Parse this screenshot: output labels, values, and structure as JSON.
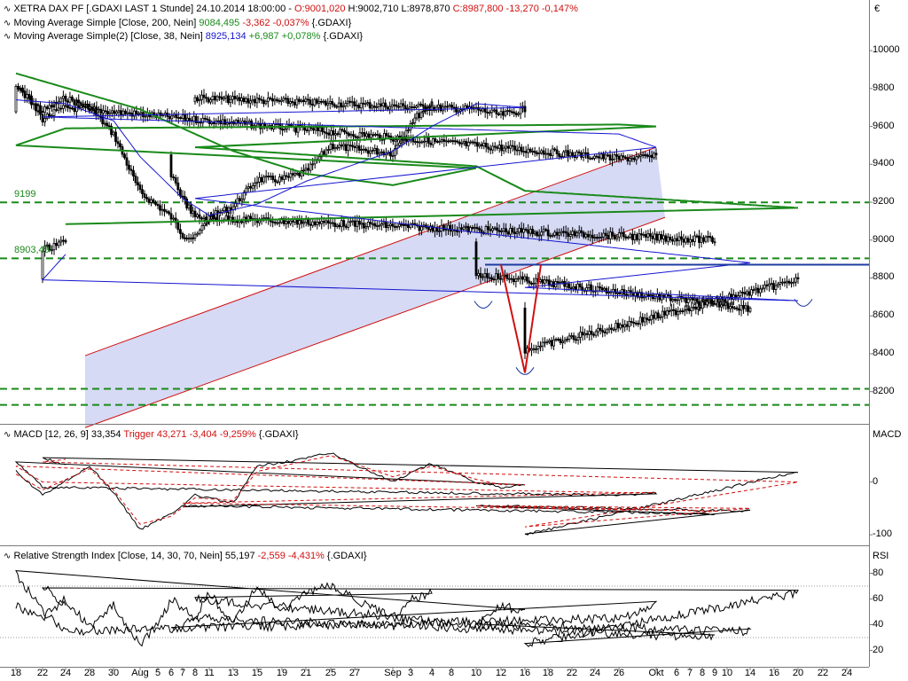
{
  "colors": {
    "price_bar": "#000000",
    "ma200": "#1a8a1a",
    "ma38": "#1515d0",
    "channel": "#d01010",
    "channel_fill": "#c8cdf0",
    "level_line": "#1a8a1a",
    "neckline": "#1e3ca0",
    "macd_line": "#000000",
    "trigger_line": "#d01010",
    "rsi_line": "#000000",
    "negative_text": "#d01010",
    "positive_text": "#1a8a1a",
    "ma200_text": "#1a8a1a",
    "ma38_text": "#1515d0"
  },
  "header": {
    "title_prefix": "XETRA DAX PF [.GDAXI LAST 1 Stunde] 24.10.2014 18:00:00 - ",
    "open": "O:9001,020",
    "hlc": " H:9002,710 L:8978,870 ",
    "close_change": "C:8987,800 -13,270 -0,147%",
    "currency_symbol": "€"
  },
  "legends": {
    "ma200_label": "Moving Average Simple [Close, 200, Nein]",
    "ma200_value": "9084,495",
    "ma200_change": "-3,362 -0,037%",
    "ma200_suffix": "{.GDAXI}",
    "ma38_label": "Moving Average Simple(2) [Close, 38, Nein]",
    "ma38_value": "8925,134",
    "ma38_change": "+6,987 +0,078%",
    "ma38_suffix": "{.GDAXI}",
    "macd_label": "MACD [12, 26, 9] 33,354 ",
    "macd_trigger": "Trigger 43,271 -3,404 -9,259%",
    "macd_suffix": " {.GDAXI}",
    "macd_title": "MACD",
    "rsi_label": "Relative Strength Index [Close, 14, 30, 70, Nein] 55,197 ",
    "rsi_change": "-2,559 -4,431%",
    "rsi_suffix": " {.GDAXI}",
    "rsi_title": "RSI"
  },
  "chart_data": [
    {
      "type": "candlestick",
      "name": "XETRA DAX PF",
      "timeframe": "1 Stunde",
      "y_ticks": [
        8200,
        8400,
        8600,
        8800,
        9000,
        9200,
        9400,
        9600,
        9800,
        10000
      ],
      "y_range": [
        8030,
        10080
      ],
      "level_labels": [
        "9199",
        "8903,49"
      ],
      "horizontal_levels": [
        9199,
        8903.49,
        8215,
        8130
      ],
      "neckline": 8870,
      "x_labels": [
        "18",
        "22",
        "24",
        "28",
        "30",
        "Aug",
        "5",
        "6",
        "7",
        "8",
        "11",
        "13",
        "15",
        "19",
        "21",
        "25",
        "27",
        "Sep",
        "3",
        "4",
        "8",
        "10",
        "12",
        "16",
        "18",
        "22",
        "24",
        "26",
        "Okt",
        "6",
        "7",
        "8",
        "9",
        "10",
        "14",
        "16",
        "20",
        "22",
        "24"
      ],
      "close_path": [
        [
          "18",
          9810
        ],
        [
          "22",
          9680
        ],
        [
          "24",
          9750
        ],
        [
          "28",
          9700
        ],
        [
          "30",
          9560
        ],
        [
          "Aug",
          9250
        ],
        [
          "5",
          9180
        ],
        [
          "6",
          9120
        ],
        [
          "7",
          9030
        ],
        [
          "8",
          9010
        ],
        [
          "11",
          9120
        ],
        [
          "13",
          9180
        ],
        [
          "15",
          9320
        ],
        [
          "19",
          9320
        ],
        [
          "21",
          9360
        ],
        [
          "25",
          9500
        ],
        [
          "27",
          9480
        ],
        [
          "Sep",
          9460
        ],
        [
          "3",
          9620
        ],
        [
          "4",
          9730
        ],
        [
          "8",
          9750
        ],
        [
          "10",
          9690
        ],
        [
          "12",
          9660
        ],
        [
          "16",
          9690
        ],
        [
          "18",
          9830
        ],
        [
          "22",
          9640
        ],
        [
          "24",
          9700
        ],
        [
          "26",
          9430
        ],
        [
          "Okt",
          9440
        ],
        [
          "6",
          9350
        ],
        [
          "7",
          9220
        ],
        [
          "8",
          9120
        ],
        [
          "9",
          9000
        ],
        [
          "10",
          8820
        ],
        [
          "14",
          8640
        ],
        [
          "16",
          8420
        ],
        [
          "20",
          8790
        ],
        [
          "22",
          8950
        ],
        [
          "24",
          8990
        ]
      ],
      "ma200_path": [
        [
          "18",
          9880
        ],
        [
          "Aug",
          9690
        ],
        [
          "13",
          9470
        ],
        [
          "21",
          9350
        ],
        [
          "Sep",
          9290
        ],
        [
          "10",
          9380
        ],
        [
          "18",
          9500
        ],
        [
          "24",
          9590
        ],
        [
          "26",
          9610
        ],
        [
          "Okt",
          9600
        ],
        [
          "8",
          9490
        ],
        [
          "10",
          9390
        ],
        [
          "16",
          9260
        ],
        [
          "20",
          9170
        ],
        [
          "24",
          9084
        ]
      ],
      "ma38_path": [
        [
          "18",
          9740
        ],
        [
          "24",
          9720
        ],
        [
          "30",
          9630
        ],
        [
          "Aug",
          9440
        ],
        [
          "7",
          9220
        ],
        [
          "11",
          9130
        ],
        [
          "15",
          9190
        ],
        [
          "21",
          9310
        ],
        [
          "27",
          9400
        ],
        [
          "Sep",
          9470
        ],
        [
          "4",
          9600
        ],
        [
          "10",
          9720
        ],
        [
          "16",
          9700
        ],
        [
          "22",
          9650
        ],
        [
          "26",
          9560
        ],
        [
          "Okt",
          9490
        ],
        [
          "8",
          9220
        ],
        [
          "10",
          9040
        ],
        [
          "14",
          8880
        ],
        [
          "16",
          8750
        ],
        [
          "20",
          8680
        ],
        [
          "22",
          8790
        ],
        [
          "24",
          8925
        ]
      ],
      "annotations": {
        "channel_upper_start": [
          "Okt",
          9490
        ],
        "channel_upper_end": [
          "24",
          8390
        ],
        "channel_lower_start": [
          "Okt",
          9120
        ],
        "channel_lower_end": [
          "24",
          8010
        ],
        "inverse_head_shoulders": [
          [
            "10",
            8650
          ],
          [
            "16",
            8300
          ],
          [
            "20",
            8660
          ]
        ]
      }
    },
    {
      "type": "line",
      "name": "MACD",
      "series": [
        {
          "name": "MACD"
        },
        {
          "name": "Trigger"
        }
      ],
      "y_ticks": [
        0,
        -100
      ],
      "y_range": [
        -115,
        80
      ],
      "macd_path": [
        [
          "18",
          20
        ],
        [
          "22",
          -25
        ],
        [
          "28",
          30
        ],
        [
          "30",
          -20
        ],
        [
          "Aug",
          -90
        ],
        [
          "6",
          -60
        ],
        [
          "8",
          -25
        ],
        [
          "13",
          -40
        ],
        [
          "15",
          30
        ],
        [
          "21",
          45
        ],
        [
          "25",
          55
        ],
        [
          "Sep",
          0
        ],
        [
          "4",
          35
        ],
        [
          "10",
          0
        ],
        [
          "12",
          -10
        ],
        [
          "16",
          -5
        ],
        [
          "18",
          40
        ],
        [
          "22",
          -10
        ],
        [
          "26",
          -25
        ],
        [
          "Okt",
          -20
        ],
        [
          "7",
          -45
        ],
        [
          "9",
          -60
        ],
        [
          "10",
          -45
        ],
        [
          "14",
          -55
        ],
        [
          "16",
          -100
        ],
        [
          "20",
          20
        ],
        [
          "22",
          45
        ],
        [
          "24",
          33
        ]
      ],
      "trigger_path": [
        [
          "18",
          15
        ],
        [
          "22",
          -15
        ],
        [
          "28",
          25
        ],
        [
          "30",
          -15
        ],
        [
          "Aug",
          -80
        ],
        [
          "6",
          -65
        ],
        [
          "8",
          -30
        ],
        [
          "13",
          -35
        ],
        [
          "15",
          20
        ],
        [
          "21",
          40
        ],
        [
          "25",
          50
        ],
        [
          "Sep",
          10
        ],
        [
          "4",
          30
        ],
        [
          "10",
          5
        ],
        [
          "12",
          -5
        ],
        [
          "16",
          -5
        ],
        [
          "18",
          30
        ],
        [
          "22",
          0
        ],
        [
          "26",
          -20
        ],
        [
          "Okt",
          -20
        ],
        [
          "7",
          -40
        ],
        [
          "9",
          -55
        ],
        [
          "10",
          -45
        ],
        [
          "14",
          -50
        ],
        [
          "16",
          -85
        ],
        [
          "20",
          0
        ],
        [
          "22",
          38
        ],
        [
          "24",
          43
        ]
      ]
    },
    {
      "type": "line",
      "name": "RSI",
      "y_ticks": [
        20,
        40,
        60,
        80
      ],
      "y_range": [
        10,
        90
      ],
      "reference_levels": [
        30,
        70
      ],
      "rsi_path": [
        [
          "18",
          55
        ],
        [
          "22",
          45
        ],
        [
          "24",
          60
        ],
        [
          "28",
          38
        ],
        [
          "30",
          55
        ],
        [
          "Aug",
          25
        ],
        [
          "5",
          40
        ],
        [
          "6",
          60
        ],
        [
          "8",
          45
        ],
        [
          "11",
          65
        ],
        [
          "13",
          40
        ],
        [
          "15",
          70
        ],
        [
          "19",
          50
        ],
        [
          "21",
          65
        ],
        [
          "25",
          70
        ],
        [
          "27",
          60
        ],
        [
          "Sep",
          45
        ],
        [
          "3",
          60
        ],
        [
          "4",
          65
        ],
        [
          "8",
          60
        ],
        [
          "10",
          40
        ],
        [
          "12",
          55
        ],
        [
          "16",
          50
        ],
        [
          "18",
          80
        ],
        [
          "22",
          50
        ],
        [
          "24",
          35
        ],
        [
          "26",
          45
        ],
        [
          "Okt",
          55
        ],
        [
          "6",
          35
        ],
        [
          "7",
          40
        ],
        [
          "8",
          45
        ],
        [
          "9",
          30
        ],
        [
          "10",
          40
        ],
        [
          "14",
          35
        ],
        [
          "16",
          25
        ],
        [
          "20",
          65
        ],
        [
          "22",
          70
        ],
        [
          "24",
          55
        ]
      ]
    }
  ]
}
